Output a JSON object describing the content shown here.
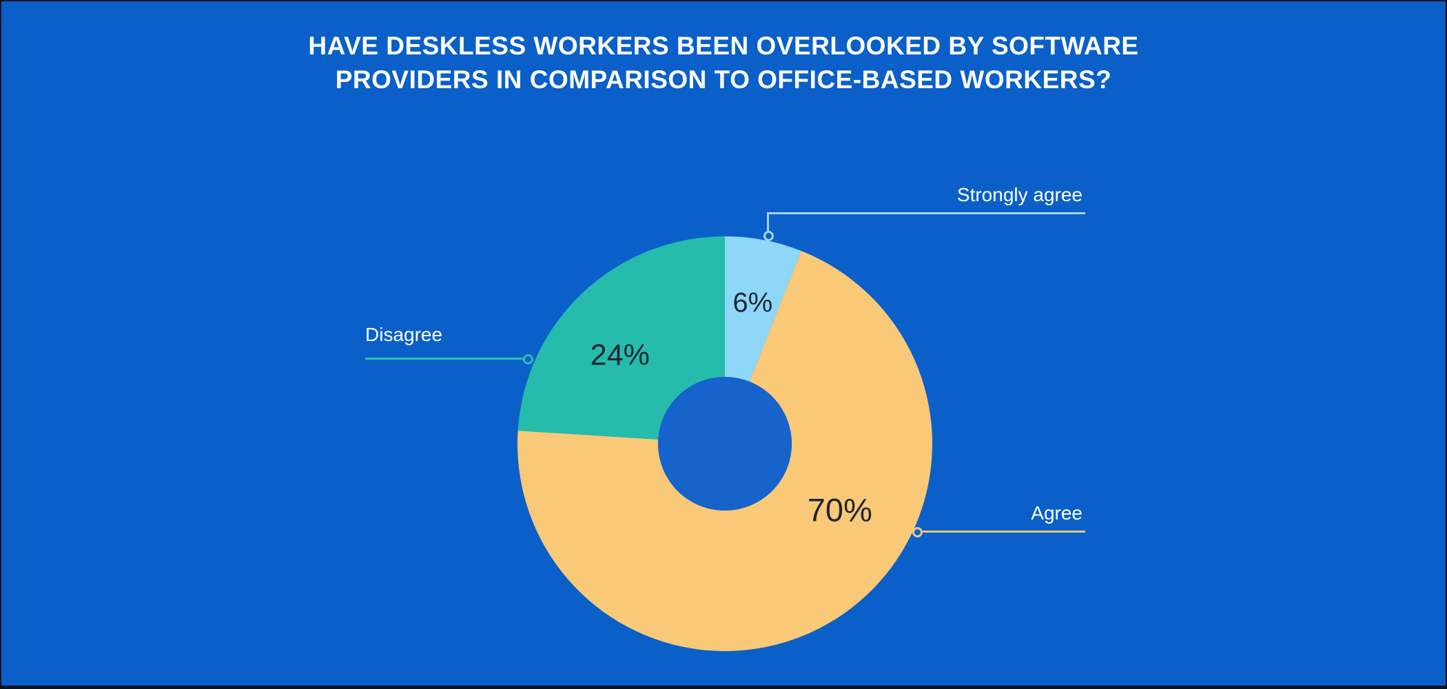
{
  "title": {
    "line1": "HAVE DESKLESS WORKERS BEEN OVERLOOKED BY SOFTWARE",
    "line2": "PROVIDERS IN COMPARISON TO OFFICE-BASED WORKERS?"
  },
  "chart_data": {
    "type": "pie",
    "subtype": "donut",
    "title": "HAVE DESKLESS WORKERS BEEN OVERLOOKED BY SOFTWARE PROVIDERS IN COMPARISON TO OFFICE-BASED WORKERS?",
    "units": "%",
    "start_angle": "top",
    "direction": "clockwise",
    "legend_position": "callout-labels",
    "slices": [
      {
        "label": "Strongly agree",
        "value": 6,
        "percent_label": "6%",
        "color": "#8ED7F8"
      },
      {
        "label": "Agree",
        "value": 70,
        "percent_label": "70%",
        "color": "#F9C977"
      },
      {
        "label": "Disagree",
        "value": 24,
        "percent_label": "24%",
        "color": "#26BCAC"
      }
    ]
  },
  "colors": {
    "background": "#0A60C8",
    "donut_hole": "#1563CB",
    "title_text": "#FFFFFF",
    "callout_label_text": "#FFFFFF",
    "percent_text": "#1F2733",
    "leader_strongly_agree": "#A6D5F1",
    "leader_agree": "#EFC57F",
    "leader_disagree": "#2BBFAE",
    "frame_border": "#071424"
  }
}
